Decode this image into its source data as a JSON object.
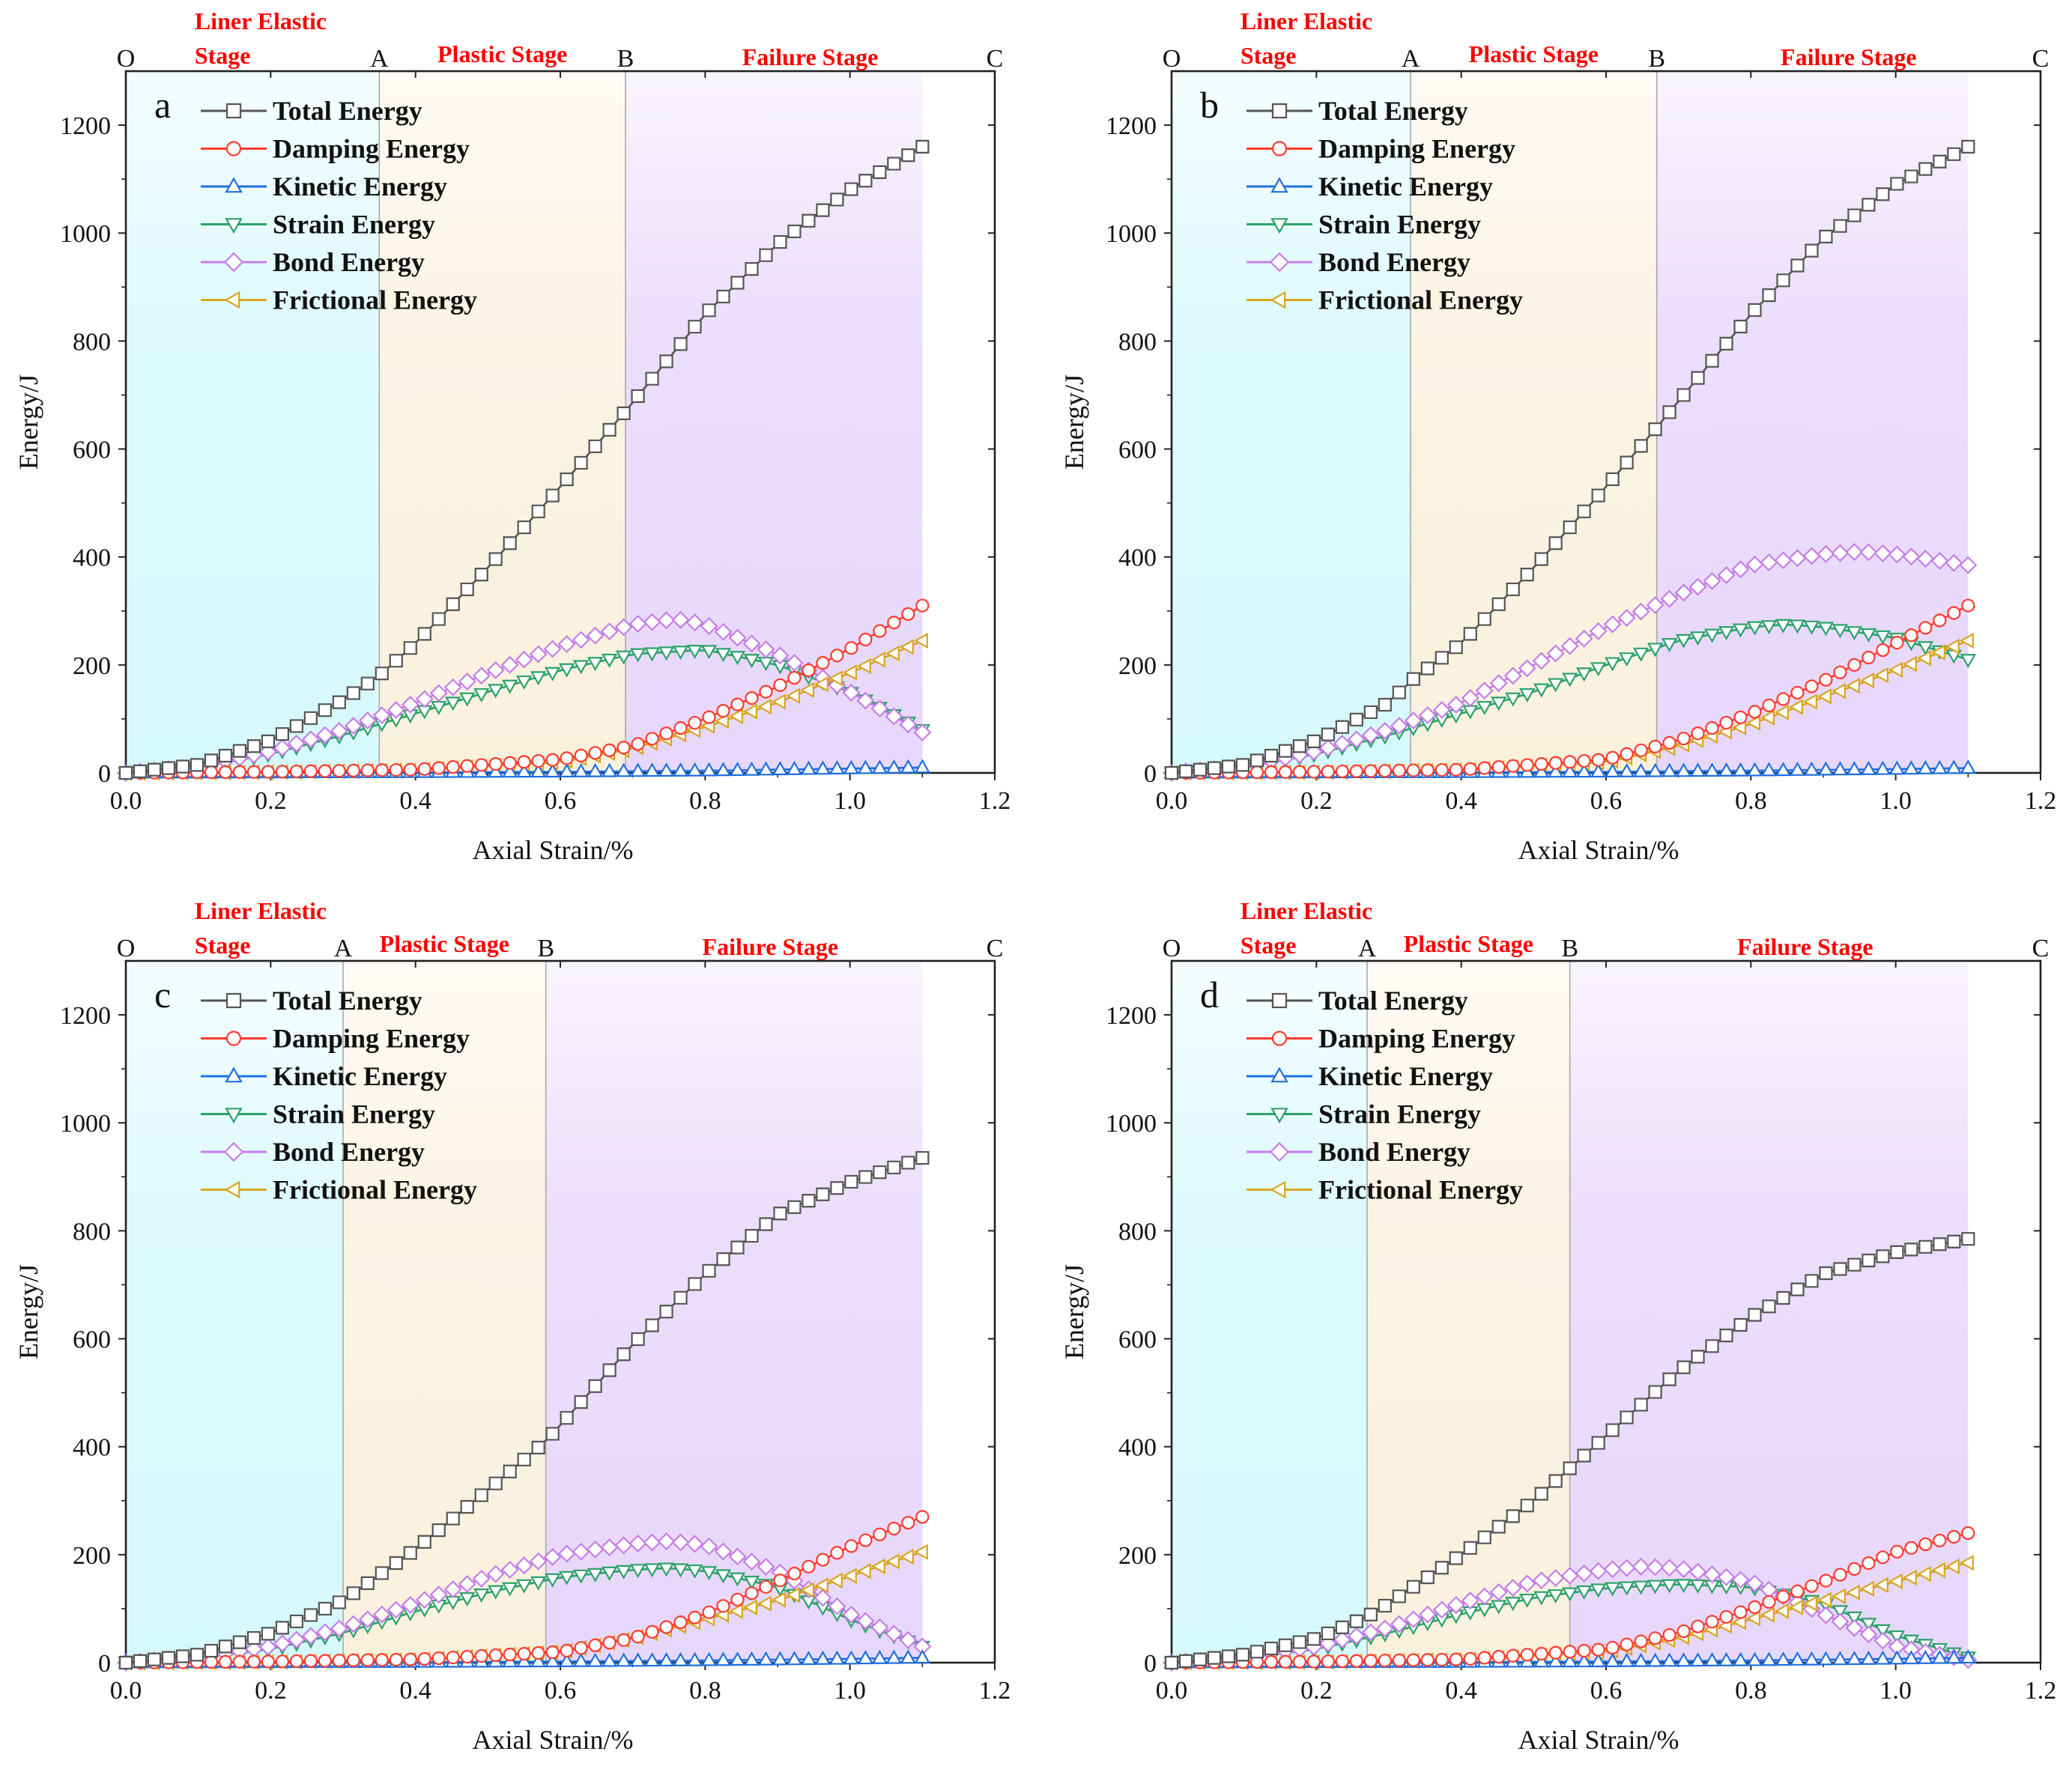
{
  "chart_data": [
    {
      "type": "line",
      "panel_label": "a",
      "xlabel": "Axial Strain/%",
      "ylabel": "Energy/J",
      "xlim": [
        0,
        1.2
      ],
      "ylim": [
        0,
        1300
      ],
      "xticks": [
        "0.0",
        "0.2",
        "0.4",
        "0.6",
        "0.8",
        "1.0",
        "1.2"
      ],
      "yticks": [
        "0",
        "200",
        "400",
        "600",
        "800",
        "1000",
        "1200"
      ],
      "stage_boundaries": [
        0.35,
        0.69
      ],
      "stage_points": [
        "O",
        "A",
        "B",
        "C"
      ],
      "stage_labels": {
        "elastic_1": "Liner Elastic",
        "elastic_2": "Stage",
        "plastic": "Plastic Stage",
        "failure": "Failure Stage"
      },
      "series": [
        {
          "name": "Total Energy",
          "color": "#555555",
          "marker": "square",
          "x": [
            0,
            0.1,
            0.2,
            0.3,
            0.35,
            0.4,
            0.5,
            0.6,
            0.69,
            0.8,
            0.9,
            1.0,
            1.1
          ],
          "y": [
            0,
            15,
            60,
            135,
            180,
            240,
            380,
            530,
            670,
            850,
            980,
            1080,
            1160
          ]
        },
        {
          "name": "Damping Energy",
          "color": "#ff3b30",
          "marker": "circle",
          "x": [
            0,
            0.2,
            0.4,
            0.6,
            0.7,
            0.8,
            0.9,
            1.0,
            1.1
          ],
          "y": [
            0,
            2,
            6,
            25,
            50,
            100,
            160,
            230,
            310
          ]
        },
        {
          "name": "Kinetic Energy",
          "color": "#1f6fe0",
          "marker": "triangle-up",
          "x": [
            0,
            0.4,
            0.6,
            0.8,
            1.0,
            1.1
          ],
          "y": [
            0,
            1,
            2,
            4,
            8,
            10
          ]
        },
        {
          "name": "Strain Energy",
          "color": "#2ca26a",
          "marker": "triangle-down",
          "x": [
            0,
            0.1,
            0.2,
            0.3,
            0.4,
            0.5,
            0.6,
            0.7,
            0.8,
            0.9,
            1.0,
            1.1
          ],
          "y": [
            0,
            10,
            35,
            70,
            110,
            150,
            190,
            220,
            228,
            200,
            150,
            80
          ]
        },
        {
          "name": "Bond Energy",
          "color": "#c77de8",
          "marker": "diamond",
          "x": [
            0,
            0.1,
            0.2,
            0.3,
            0.4,
            0.5,
            0.6,
            0.7,
            0.76,
            0.8,
            0.9,
            1.0,
            1.1
          ],
          "y": [
            0,
            12,
            40,
            80,
            130,
            185,
            235,
            275,
            285,
            275,
            220,
            150,
            75
          ]
        },
        {
          "name": "Frictional Energy",
          "color": "#d9a520",
          "marker": "triangle-left",
          "x": [
            0,
            0.2,
            0.4,
            0.6,
            0.7,
            0.8,
            0.9,
            1.0,
            1.1
          ],
          "y": [
            0,
            1,
            5,
            20,
            45,
            85,
            130,
            185,
            245
          ]
        }
      ]
    },
    {
      "type": "line",
      "panel_label": "b",
      "xlabel": "Axial Strain/%",
      "ylabel": "Energy/J",
      "xlim": [
        0,
        1.2
      ],
      "ylim": [
        0,
        1300
      ],
      "xticks": [
        "0.0",
        "0.2",
        "0.4",
        "0.6",
        "0.8",
        "1.0",
        "1.2"
      ],
      "yticks": [
        "0",
        "200",
        "400",
        "600",
        "800",
        "1000",
        "1200"
      ],
      "stage_boundaries": [
        0.33,
        0.67
      ],
      "stage_points": [
        "O",
        "A",
        "B",
        "C"
      ],
      "stage_labels": {
        "elastic_1": "Liner Elastic",
        "elastic_2": "Stage",
        "plastic": "Plastic Stage",
        "failure": "Failure Stage"
      },
      "series": [
        {
          "name": "Total Energy",
          "color": "#555555",
          "marker": "square",
          "x": [
            0,
            0.1,
            0.2,
            0.3,
            0.33,
            0.4,
            0.5,
            0.6,
            0.67,
            0.8,
            0.9,
            1.0,
            1.1
          ],
          "y": [
            0,
            15,
            60,
            130,
            170,
            240,
            380,
            530,
            640,
            850,
            990,
            1090,
            1160
          ]
        },
        {
          "name": "Damping Energy",
          "color": "#ff3b30",
          "marker": "circle",
          "x": [
            0,
            0.2,
            0.4,
            0.6,
            0.7,
            0.8,
            0.9,
            1.0,
            1.1
          ],
          "y": [
            0,
            2,
            6,
            25,
            60,
            110,
            170,
            240,
            310
          ]
        },
        {
          "name": "Kinetic Energy",
          "color": "#1f6fe0",
          "marker": "triangle-up",
          "x": [
            0,
            0.4,
            0.6,
            0.8,
            1.0,
            1.1
          ],
          "y": [
            0,
            1,
            2,
            4,
            7,
            9
          ]
        },
        {
          "name": "Strain Energy",
          "color": "#2ca26a",
          "marker": "triangle-down",
          "x": [
            0,
            0.1,
            0.2,
            0.3,
            0.4,
            0.5,
            0.6,
            0.7,
            0.8,
            0.85,
            0.9,
            1.0,
            1.1
          ],
          "y": [
            0,
            10,
            35,
            70,
            110,
            150,
            200,
            245,
            270,
            275,
            270,
            250,
            210
          ]
        },
        {
          "name": "Bond Energy",
          "color": "#c77de8",
          "marker": "diamond",
          "x": [
            0,
            0.1,
            0.2,
            0.3,
            0.4,
            0.5,
            0.6,
            0.7,
            0.8,
            0.9,
            0.95,
            1.0,
            1.1
          ],
          "y": [
            0,
            12,
            40,
            80,
            130,
            200,
            270,
            330,
            385,
            405,
            410,
            405,
            385
          ]
        },
        {
          "name": "Frictional Energy",
          "color": "#d9a520",
          "marker": "triangle-left",
          "x": [
            0,
            0.2,
            0.4,
            0.6,
            0.7,
            0.8,
            0.9,
            1.0,
            1.1
          ],
          "y": [
            0,
            1,
            5,
            20,
            50,
            90,
            140,
            190,
            245
          ]
        }
      ]
    },
    {
      "type": "line",
      "panel_label": "c",
      "xlabel": "Axial Strain/%",
      "ylabel": "Energy/J",
      "xlim": [
        0,
        1.2
      ],
      "ylim": [
        0,
        1300
      ],
      "xticks": [
        "0.0",
        "0.2",
        "0.4",
        "0.6",
        "0.8",
        "1.0",
        "1.2"
      ],
      "yticks": [
        "0",
        "200",
        "400",
        "600",
        "800",
        "1000",
        "1200"
      ],
      "stage_boundaries": [
        0.3,
        0.58
      ],
      "stage_points": [
        "O",
        "A",
        "B",
        "C"
      ],
      "stage_labels": {
        "elastic_1": "Liner Elastic",
        "elastic_2": "Stage",
        "plastic": "Plastic Stage",
        "failure": "Failure Stage"
      },
      "series": [
        {
          "name": "Total Energy",
          "color": "#555555",
          "marker": "square",
          "x": [
            0,
            0.1,
            0.2,
            0.3,
            0.4,
            0.5,
            0.58,
            0.7,
            0.8,
            0.9,
            1.0,
            1.1
          ],
          "y": [
            0,
            15,
            55,
            115,
            210,
            320,
            410,
            590,
            720,
            830,
            890,
            935
          ]
        },
        {
          "name": "Damping Energy",
          "color": "#ff3b30",
          "marker": "circle",
          "x": [
            0,
            0.2,
            0.4,
            0.6,
            0.7,
            0.8,
            0.9,
            1.0,
            1.1
          ],
          "y": [
            0,
            2,
            6,
            20,
            45,
            90,
            150,
            215,
            270
          ]
        },
        {
          "name": "Kinetic Energy",
          "color": "#1f6fe0",
          "marker": "triangle-up",
          "x": [
            0,
            0.4,
            0.6,
            0.8,
            1.0,
            1.1
          ],
          "y": [
            0,
            1,
            2,
            4,
            7,
            9
          ]
        },
        {
          "name": "Strain Energy",
          "color": "#2ca26a",
          "marker": "triangle-down",
          "x": [
            0,
            0.1,
            0.2,
            0.3,
            0.4,
            0.5,
            0.6,
            0.7,
            0.75,
            0.8,
            0.9,
            1.0,
            1.1
          ],
          "y": [
            0,
            8,
            25,
            55,
            95,
            130,
            158,
            172,
            175,
            170,
            140,
            80,
            30
          ]
        },
        {
          "name": "Bond Energy",
          "color": "#c77de8",
          "marker": "diamond",
          "x": [
            0,
            0.1,
            0.2,
            0.3,
            0.4,
            0.5,
            0.6,
            0.7,
            0.75,
            0.8,
            0.9,
            1.0,
            1.1
          ],
          "y": [
            0,
            10,
            30,
            65,
            110,
            160,
            200,
            220,
            225,
            218,
            170,
            90,
            30
          ]
        },
        {
          "name": "Frictional Energy",
          "color": "#d9a520",
          "marker": "triangle-left",
          "x": [
            0,
            0.2,
            0.4,
            0.6,
            0.7,
            0.8,
            0.9,
            1.0,
            1.1
          ],
          "y": [
            0,
            1,
            5,
            20,
            45,
            80,
            115,
            160,
            205
          ]
        }
      ]
    },
    {
      "type": "line",
      "panel_label": "d",
      "xlabel": "Axial Strain/%",
      "ylabel": "Energy/J",
      "xlim": [
        0,
        1.2
      ],
      "ylim": [
        0,
        1300
      ],
      "xticks": [
        "0.0",
        "0.2",
        "0.4",
        "0.6",
        "0.8",
        "1.0",
        "1.2"
      ],
      "yticks": [
        "0",
        "200",
        "400",
        "600",
        "800",
        "1000",
        "1200"
      ],
      "stage_boundaries": [
        0.27,
        0.55
      ],
      "stage_points": [
        "O",
        "A",
        "B",
        "C"
      ],
      "stage_labels": {
        "elastic_1": "Liner Elastic",
        "elastic_2": "Stage",
        "plastic": "Plastic Stage",
        "failure": "Failure Stage"
      },
      "series": [
        {
          "name": "Total Energy",
          "color": "#555555",
          "marker": "square",
          "x": [
            0,
            0.1,
            0.2,
            0.27,
            0.3,
            0.4,
            0.5,
            0.55,
            0.6,
            0.7,
            0.8,
            0.9,
            1.0,
            1.1
          ],
          "y": [
            0,
            15,
            45,
            85,
            110,
            200,
            300,
            360,
            420,
            540,
            640,
            720,
            760,
            785
          ]
        },
        {
          "name": "Damping Energy",
          "color": "#ff3b30",
          "marker": "circle",
          "x": [
            0,
            0.2,
            0.4,
            0.6,
            0.7,
            0.8,
            0.9,
            1.0,
            1.1
          ],
          "y": [
            0,
            2,
            6,
            25,
            55,
            100,
            150,
            205,
            240
          ]
        },
        {
          "name": "Kinetic Energy",
          "color": "#1f6fe0",
          "marker": "triangle-up",
          "x": [
            0,
            0.4,
            0.6,
            0.8,
            1.0,
            1.1
          ],
          "y": [
            0,
            1,
            2,
            4,
            7,
            9
          ]
        },
        {
          "name": "Strain Energy",
          "color": "#2ca26a",
          "marker": "triangle-down",
          "x": [
            0,
            0.1,
            0.2,
            0.3,
            0.4,
            0.5,
            0.6,
            0.7,
            0.8,
            0.9,
            1.0,
            1.1
          ],
          "y": [
            0,
            8,
            25,
            55,
            90,
            120,
            138,
            145,
            140,
            110,
            50,
            10
          ]
        },
        {
          "name": "Bond Energy",
          "color": "#c77de8",
          "marker": "diamond",
          "x": [
            0,
            0.1,
            0.2,
            0.3,
            0.4,
            0.5,
            0.6,
            0.65,
            0.7,
            0.8,
            0.9,
            1.0,
            1.1
          ],
          "y": [
            0,
            10,
            30,
            65,
            110,
            150,
            172,
            178,
            175,
            150,
            90,
            30,
            5
          ]
        },
        {
          "name": "Frictional Energy",
          "color": "#d9a520",
          "marker": "triangle-left",
          "x": [
            0,
            0.2,
            0.4,
            0.6,
            0.7,
            0.8,
            0.9,
            1.0,
            1.1
          ],
          "y": [
            0,
            1,
            5,
            20,
            45,
            80,
            115,
            150,
            185
          ]
        }
      ]
    }
  ]
}
